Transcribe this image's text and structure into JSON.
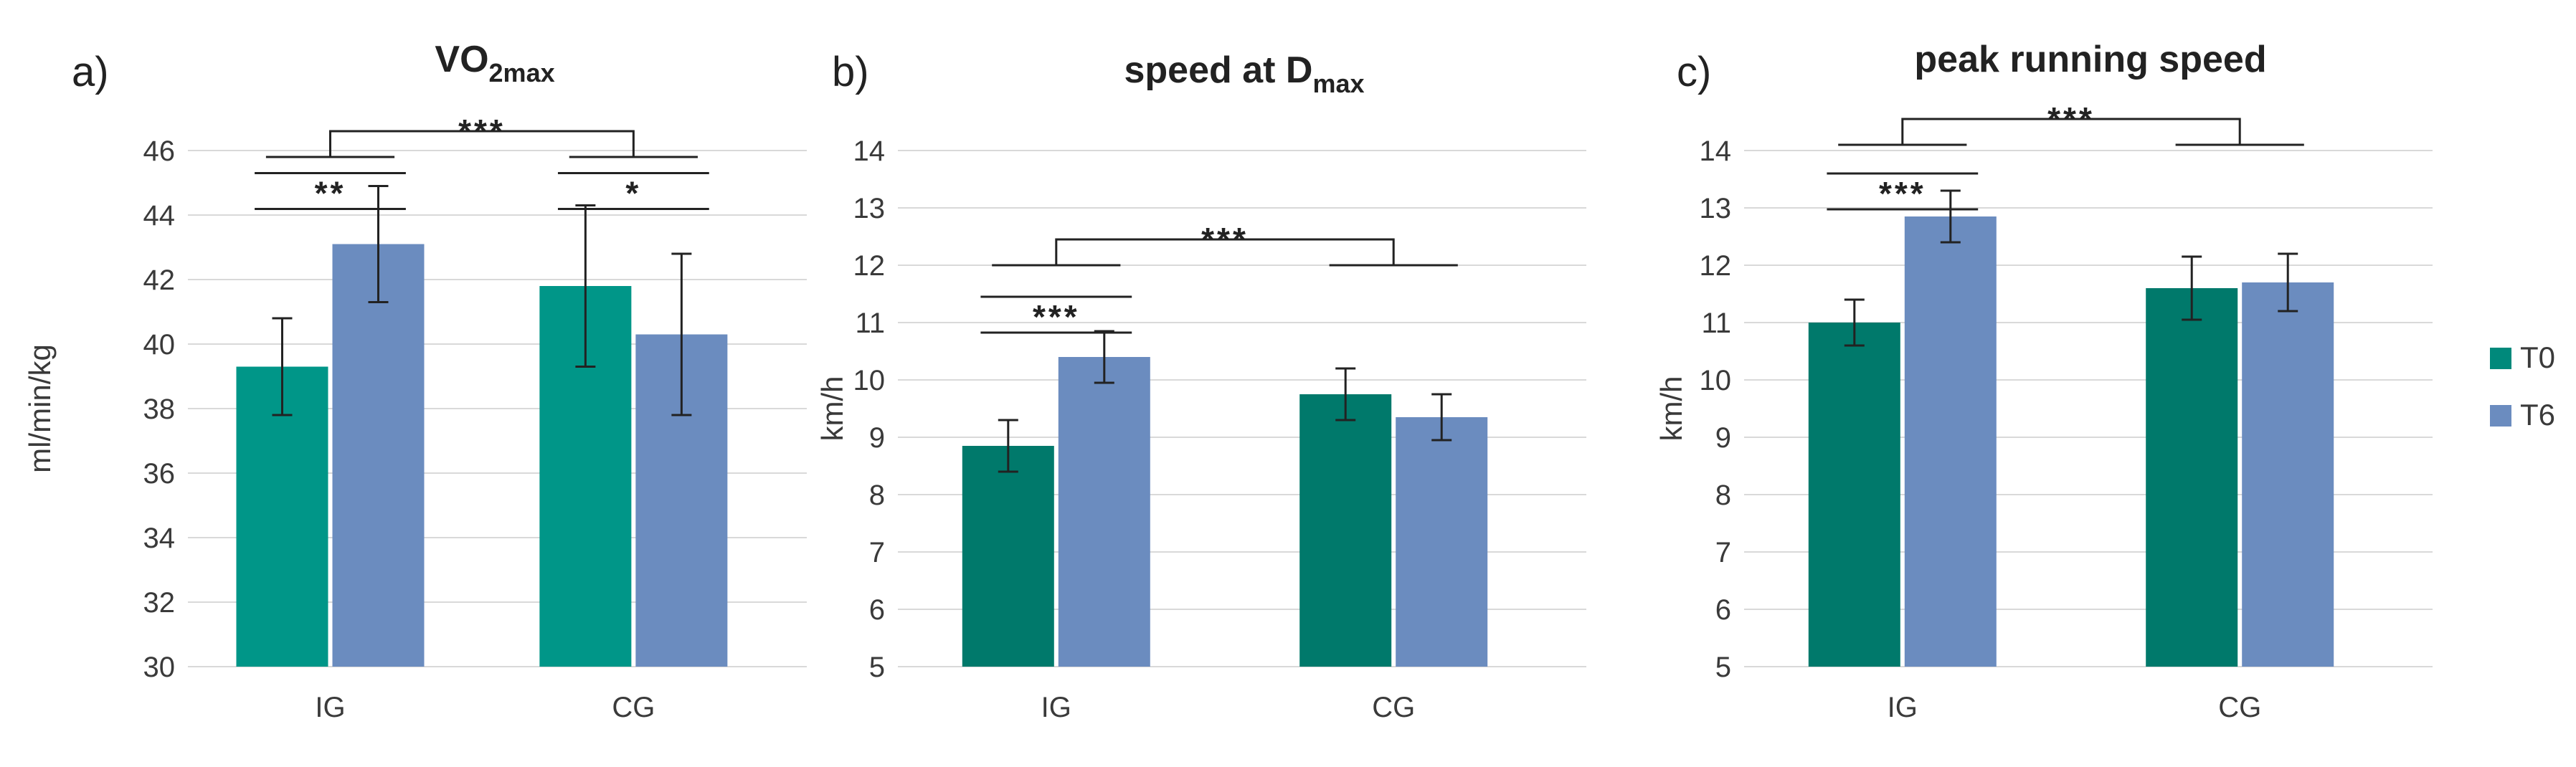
{
  "legend": [
    {
      "label": "T0",
      "color": "#00897b"
    },
    {
      "label": "T6",
      "color": "#6b8cbf"
    }
  ],
  "chart_data": [
    {
      "type": "bar",
      "panel": "a)",
      "title": "VO",
      "title_sub": "2max",
      "ylabel": "ml/min/kg",
      "ylim": [
        30,
        46
      ],
      "yticks": [
        30,
        32,
        34,
        36,
        38,
        40,
        42,
        44,
        46
      ],
      "categories": [
        "IG",
        "CG"
      ],
      "t0_color": "#009688",
      "series": [
        {
          "name": "T0",
          "values": [
            39.3,
            41.8
          ],
          "errors": [
            1.5,
            2.5
          ]
        },
        {
          "name": "T6",
          "values": [
            43.1,
            40.3
          ],
          "errors": [
            1.8,
            2.5
          ]
        }
      ],
      "significance": [
        {
          "label": "**",
          "type": "within",
          "group": 0,
          "y": 45.3
        },
        {
          "label": "*",
          "type": "within",
          "group": 1,
          "y": 45.3
        },
        {
          "label": "***",
          "type": "between",
          "y": 46.6
        }
      ]
    },
    {
      "type": "bar",
      "panel": "b)",
      "title": "speed at D",
      "title_sub": "max",
      "ylabel": "km/h",
      "ylim": [
        5,
        14
      ],
      "yticks": [
        5,
        6,
        7,
        8,
        9,
        10,
        11,
        12,
        13,
        14
      ],
      "categories": [
        "IG",
        "CG"
      ],
      "t0_color": "#00796b",
      "series": [
        {
          "name": "T0",
          "values": [
            8.85,
            9.75
          ],
          "errors": [
            0.45,
            0.45
          ]
        },
        {
          "name": "T6",
          "values": [
            10.4,
            9.35
          ],
          "errors": [
            0.45,
            0.4
          ]
        }
      ],
      "significance": [
        {
          "label": "***",
          "type": "within",
          "group": 0,
          "y": 11.45
        },
        {
          "label": "***",
          "type": "between",
          "y": 12.45
        }
      ]
    },
    {
      "type": "bar",
      "panel": "c)",
      "title": "peak running speed",
      "title_sub": "",
      "ylabel": "km/h",
      "ylim": [
        5,
        14
      ],
      "yticks": [
        5,
        6,
        7,
        8,
        9,
        10,
        11,
        12,
        13,
        14
      ],
      "categories": [
        "IG",
        "CG"
      ],
      "t0_color": "#00796b",
      "series": [
        {
          "name": "T0",
          "values": [
            11.0,
            11.6
          ],
          "errors": [
            0.4,
            0.55
          ]
        },
        {
          "name": "T6",
          "values": [
            12.85,
            11.7
          ],
          "errors": [
            0.45,
            0.5
          ]
        }
      ],
      "significance": [
        {
          "label": "***",
          "type": "within",
          "group": 0,
          "y": 13.6
        },
        {
          "label": "***",
          "type": "between",
          "y": 14.55
        }
      ]
    }
  ]
}
